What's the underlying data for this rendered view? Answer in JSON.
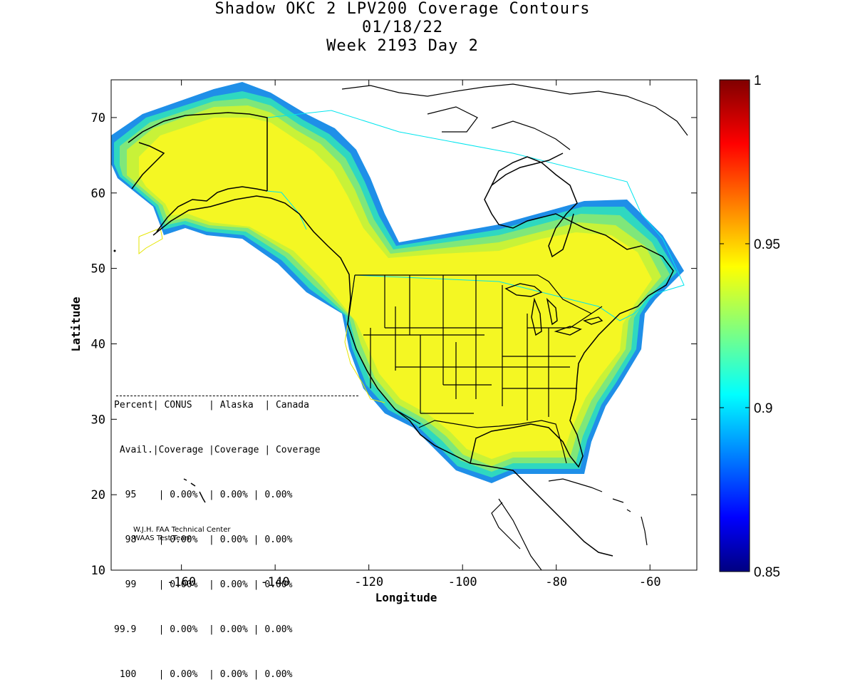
{
  "title": {
    "line1": "Shadow OKC 2 LPV200 Coverage Contours",
    "line2": "01/18/22",
    "line3": "Week 2193 Day 2"
  },
  "axes": {
    "x_label": "Longitude",
    "y_label": "Latitude",
    "x_ticks": [
      "-160",
      "-140",
      "-120",
      "-100",
      "-80",
      "-60"
    ],
    "y_ticks": [
      "70",
      "60",
      "50",
      "40",
      "30",
      "20",
      "10"
    ],
    "x_range": [
      -175,
      -50
    ],
    "y_range": [
      10,
      75
    ]
  },
  "colorbar": {
    "labels": [
      "1",
      "0.95",
      "0.9",
      "0.85"
    ],
    "range": [
      0.85,
      1.0
    ],
    "colormap": "jet"
  },
  "stats_table": {
    "header1": "Percent| CONUS   | Alaska  | Canada",
    "header2": " Avail.|Coverage |Coverage | Coverage",
    "rows": [
      "  95    | 0.00%  | 0.00% | 0.00%",
      "  98    | 0.00%  | 0.00% | 0.00%",
      "  99    | 0.00%  | 0.00% | 0.00%",
      "99.9    | 0.00%  | 0.00% | 0.00%",
      " 100    | 0.00%  | 0.00% | 0.00%"
    ]
  },
  "credit": {
    "line1": "W.J.H. FAA Technical Center",
    "line2": "WAAS Test Team"
  },
  "colors": {
    "coverage_main": "#f4f723",
    "coverage_mid": "#c8f238",
    "coverage_edge": "#7fe77a",
    "coverage_outer": "#2fd8c0",
    "coverage_rim": "#1f8fe8",
    "boundary_cyan": "#00e5ee",
    "boundary_yellow": "#e6e600"
  }
}
